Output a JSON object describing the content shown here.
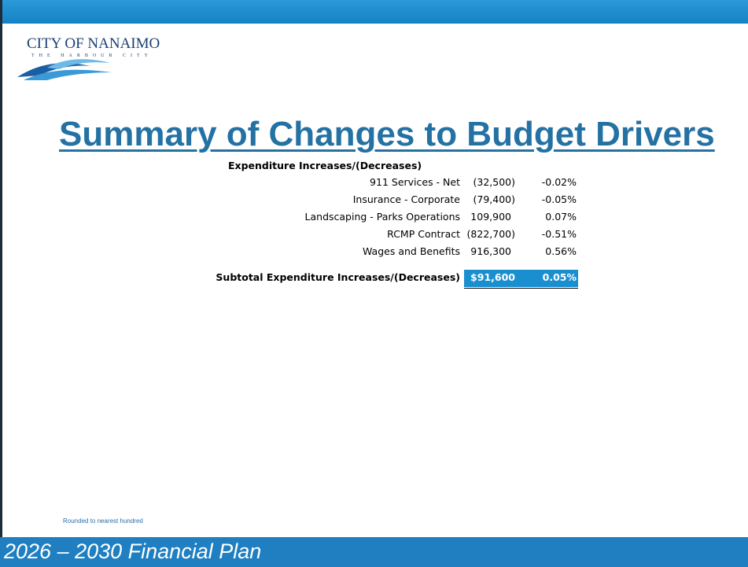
{
  "logo": {
    "name": "CITY OF NANAIMO",
    "tagline": "THE HARBOUR CITY"
  },
  "title": "Summary of Changes to Budget Drivers",
  "table": {
    "header": "Expenditure Increases/(Decreases)",
    "rows": [
      [
        "911 Services - Net",
        "(32,500)",
        "-0.02%"
      ],
      [
        "Insurance - Corporate",
        "(79,400)",
        "-0.05%"
      ],
      [
        "Landscaping - Parks Operations",
        "109,900",
        "0.07%"
      ],
      [
        "RCMP Contract",
        "(822,700)",
        "-0.51%"
      ],
      [
        "Wages and Benefits",
        "916,300",
        "0.56%"
      ]
    ],
    "subtotal": {
      "label": "Subtotal Expenditure Increases/(Decreases)",
      "currency": "$",
      "amount": "91,600",
      "percent": "0.05%"
    }
  },
  "footnote": "Rounded to nearest hundred",
  "footer": "2026 – 2030 Financial Plan"
}
